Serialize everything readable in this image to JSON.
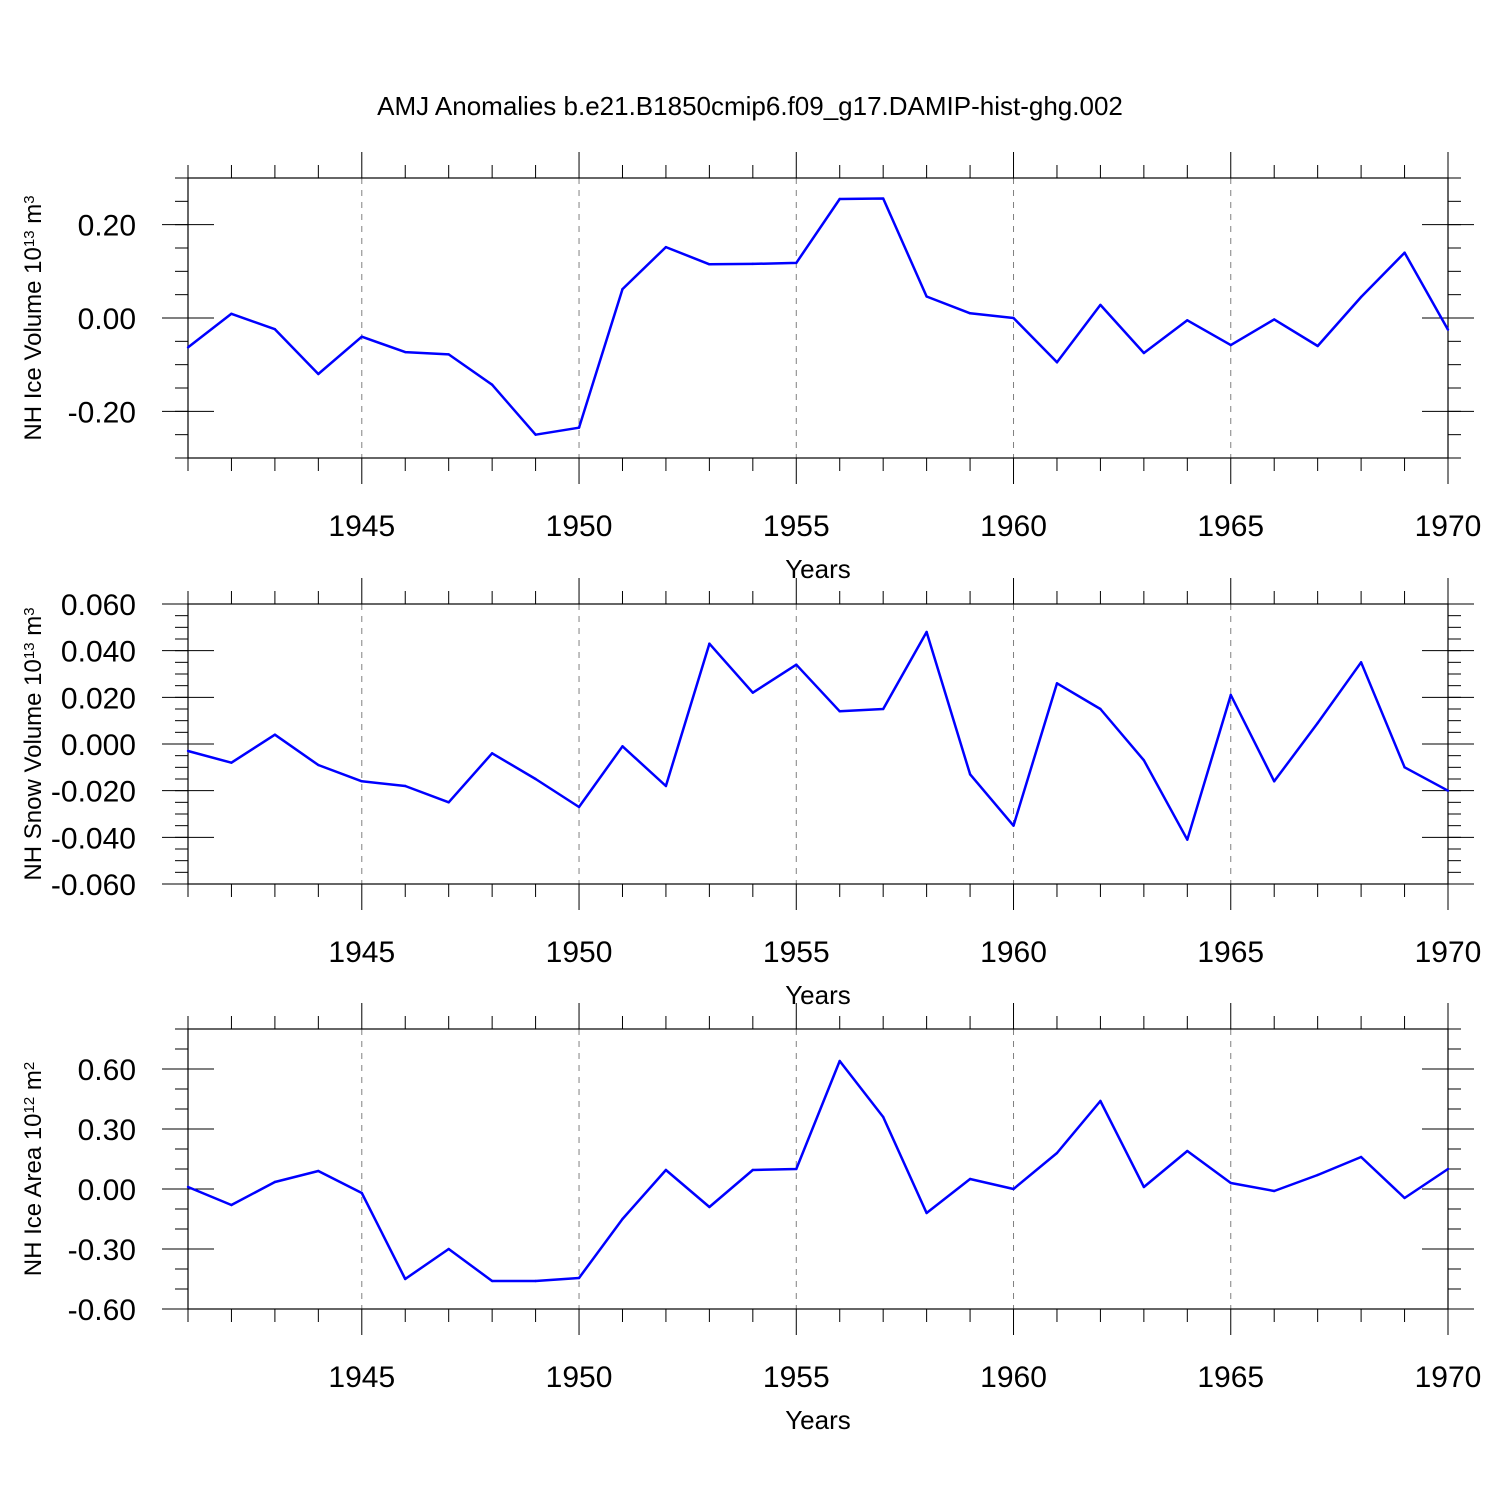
{
  "title": "AMJ Anomalies b.e21.B1850cmip6.f09_g17.DAMIP-hist-ghg.002",
  "colors": {
    "series": "#0000ff",
    "axis": "#000000",
    "grid": "#808080"
  },
  "chart_data": [
    {
      "type": "line",
      "ylabel_main": "NH Ice Volume 10",
      "ylabel_exp": "13",
      "ylabel_unit": " m",
      "ylabel_unit_exp": "3",
      "xlabel": "Years",
      "xlim": [
        1941,
        1970
      ],
      "ylim": [
        -0.3,
        0.3
      ],
      "yticks": [
        -0.2,
        0.0,
        0.2
      ],
      "ytick_labels": [
        "-0.20",
        "0.00",
        "0.20"
      ],
      "ytick_minor_step": 0.05,
      "xticks": [
        1945,
        1950,
        1955,
        1960,
        1965,
        1970
      ],
      "xtick_labels": [
        "1945",
        "1950",
        "1955",
        "1960",
        "1965",
        "1970"
      ],
      "x": [
        1941,
        1942,
        1943,
        1944,
        1945,
        1946,
        1947,
        1948,
        1949,
        1950,
        1951,
        1952,
        1953,
        1954,
        1955,
        1956,
        1957,
        1958,
        1959,
        1960,
        1961,
        1962,
        1963,
        1964,
        1965,
        1966,
        1967,
        1968,
        1969,
        1970
      ],
      "values": [
        -0.063,
        0.009,
        -0.024,
        -0.12,
        -0.04,
        -0.073,
        -0.078,
        -0.143,
        -0.25,
        -0.235,
        0.062,
        0.152,
        0.115,
        0.116,
        0.118,
        0.255,
        0.256,
        0.046,
        0.01,
        0.0,
        -0.095,
        0.028,
        -0.075,
        -0.005,
        -0.058,
        -0.003,
        -0.06,
        0.045,
        0.14,
        -0.025
      ]
    },
    {
      "type": "line",
      "ylabel_main": "NH Snow Volume 10",
      "ylabel_exp": "13",
      "ylabel_unit": " m",
      "ylabel_unit_exp": "3",
      "xlabel": "Years",
      "xlim": [
        1941,
        1970
      ],
      "ylim": [
        -0.06,
        0.06
      ],
      "yticks": [
        -0.06,
        -0.04,
        -0.02,
        0.0,
        0.02,
        0.04,
        0.06
      ],
      "ytick_labels": [
        "-0.060",
        "-0.040",
        "-0.020",
        "0.000",
        "0.020",
        "0.040",
        "0.060"
      ],
      "ytick_minor_step": 0.005,
      "xticks": [
        1945,
        1950,
        1955,
        1960,
        1965,
        1970
      ],
      "xtick_labels": [
        "1945",
        "1950",
        "1955",
        "1960",
        "1965",
        "1970"
      ],
      "x": [
        1941,
        1942,
        1943,
        1944,
        1945,
        1946,
        1947,
        1948,
        1949,
        1950,
        1951,
        1952,
        1953,
        1954,
        1955,
        1956,
        1957,
        1958,
        1959,
        1960,
        1961,
        1962,
        1963,
        1964,
        1965,
        1966,
        1967,
        1968,
        1969,
        1970
      ],
      "values": [
        -0.003,
        -0.008,
        0.004,
        -0.009,
        -0.016,
        -0.018,
        -0.025,
        -0.004,
        -0.015,
        -0.027,
        -0.001,
        -0.018,
        0.043,
        0.022,
        0.034,
        0.014,
        0.015,
        0.048,
        -0.013,
        -0.035,
        0.026,
        0.015,
        -0.007,
        -0.041,
        0.021,
        -0.016,
        0.009,
        0.035,
        -0.01,
        -0.02
      ]
    },
    {
      "type": "line",
      "ylabel_main": "NH Ice Area 10",
      "ylabel_exp": "12",
      "ylabel_unit": " m",
      "ylabel_unit_exp": "2",
      "xlabel": "Years",
      "xlim": [
        1941,
        1970
      ],
      "ylim": [
        -0.6,
        0.8
      ],
      "yticks": [
        -0.6,
        -0.3,
        0.0,
        0.3,
        0.6
      ],
      "ytick_labels": [
        "-0.60",
        "-0.30",
        "0.00",
        "0.30",
        "0.60"
      ],
      "ytick_minor_step": 0.1,
      "xticks": [
        1945,
        1950,
        1955,
        1960,
        1965,
        1970
      ],
      "xtick_labels": [
        "1945",
        "1950",
        "1955",
        "1960",
        "1965",
        "1970"
      ],
      "x": [
        1941,
        1942,
        1943,
        1944,
        1945,
        1946,
        1947,
        1948,
        1949,
        1950,
        1951,
        1952,
        1953,
        1954,
        1955,
        1956,
        1957,
        1958,
        1959,
        1960,
        1961,
        1962,
        1963,
        1964,
        1965,
        1966,
        1967,
        1968,
        1969,
        1970
      ],
      "values": [
        0.01,
        -0.08,
        0.035,
        0.09,
        -0.02,
        -0.45,
        -0.3,
        -0.46,
        -0.46,
        -0.445,
        -0.15,
        0.095,
        -0.09,
        0.095,
        0.1,
        0.64,
        0.36,
        -0.12,
        0.05,
        0.0,
        0.18,
        0.44,
        0.01,
        0.19,
        0.03,
        -0.01,
        0.07,
        0.16,
        -0.045,
        0.1
      ]
    }
  ]
}
